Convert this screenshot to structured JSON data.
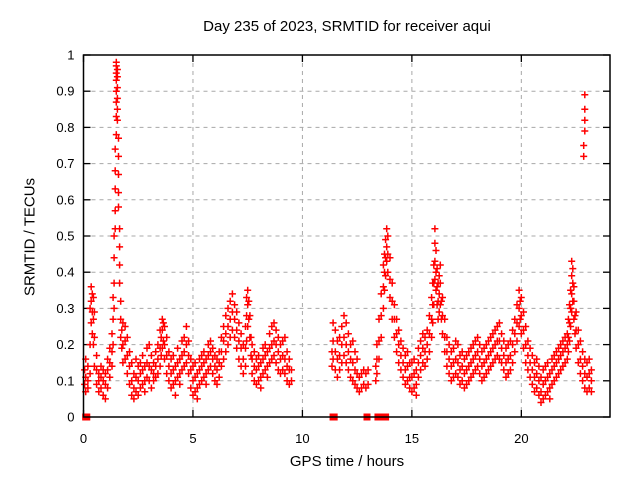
{
  "window": {
    "background": "#ffffff"
  },
  "chart_data": {
    "type": "scatter",
    "title": "Day 235 of 2023, SRMTID for receiver aqui",
    "xlabel": "GPS time / hours",
    "ylabel": "SRMTID / TECUs",
    "xlim": [
      0,
      24.05
    ],
    "ylim": [
      0,
      1
    ],
    "xticks": [
      0,
      5,
      10,
      15,
      20
    ],
    "xtick_labels": [
      "0",
      "5",
      "10",
      "15",
      "20"
    ],
    "yticks": [
      0,
      0.1,
      0.2,
      0.3,
      0.4,
      0.5,
      0.6,
      0.7,
      0.8,
      0.9,
      1
    ],
    "ytick_labels": [
      "0",
      "0.1",
      "0.2",
      "0.3",
      "0.4",
      "0.5",
      "0.6",
      "0.7",
      "0.8",
      "0.9",
      "1"
    ],
    "grid": true,
    "legend_position": "none",
    "marker": "plus",
    "marker_color": "#ff0000",
    "grid_color": "#a8a8a8",
    "border_color": "#000000",
    "columns_encoding": "each entry is [hour, value1, value2, ...]",
    "columns": [
      [
        0.05,
        0.09,
        0.13
      ],
      [
        0.1,
        0.07,
        0.11,
        0.16
      ],
      [
        0.2,
        0.1,
        0.14,
        0.08
      ],
      [
        0.3,
        0.12,
        0.2,
        0.3
      ],
      [
        0.35,
        0.26,
        0.32,
        0.36
      ],
      [
        0.4,
        0.29,
        0.34,
        0.23
      ],
      [
        0.45,
        0.2,
        0.27,
        0.33
      ],
      [
        0.5,
        0.14,
        0.22,
        0.29
      ],
      [
        0.6,
        0.09,
        0.13,
        0.17
      ],
      [
        0.7,
        0.07,
        0.12,
        0.1
      ],
      [
        0.8,
        0.08,
        0.14,
        0.11
      ],
      [
        0.9,
        0.06,
        0.1,
        0.13
      ],
      [
        1.0,
        0.05,
        0.09,
        0.12
      ],
      [
        1.1,
        0.08,
        0.13,
        0.16
      ],
      [
        1.2,
        0.11,
        0.15,
        0.19
      ],
      [
        1.3,
        0.14,
        0.18,
        0.23
      ],
      [
        1.35,
        0.2,
        0.27,
        0.33
      ],
      [
        1.4,
        0.3,
        0.37,
        0.44,
        0.5
      ],
      [
        1.45,
        0.52,
        0.57,
        0.63,
        0.68,
        0.74
      ],
      [
        1.5,
        0.78,
        0.83,
        0.87,
        0.9,
        0.93,
        0.95,
        0.97,
        0.98
      ],
      [
        1.55,
        0.96,
        0.94,
        0.91,
        0.88,
        0.85,
        0.82
      ],
      [
        1.6,
        0.77,
        0.72,
        0.67,
        0.62,
        0.58
      ],
      [
        1.65,
        0.52,
        0.47,
        0.42,
        0.37
      ],
      [
        1.7,
        0.32,
        0.27,
        0.22
      ],
      [
        1.75,
        0.19,
        0.24
      ],
      [
        1.8,
        0.15,
        0.2,
        0.26
      ],
      [
        1.9,
        0.16,
        0.21,
        0.25
      ],
      [
        2.0,
        0.12,
        0.17,
        0.22
      ],
      [
        2.1,
        0.09,
        0.14,
        0.18
      ],
      [
        2.2,
        0.06,
        0.1,
        0.15
      ],
      [
        2.3,
        0.08,
        0.12,
        0.05
      ],
      [
        2.4,
        0.07,
        0.11,
        0.16
      ],
      [
        2.5,
        0.06,
        0.1,
        0.14
      ],
      [
        2.6,
        0.08,
        0.12,
        0.15
      ],
      [
        2.7,
        0.09,
        0.13,
        0.17
      ],
      [
        2.8,
        0.1,
        0.14,
        0.07
      ],
      [
        2.9,
        0.11,
        0.15,
        0.19
      ],
      [
        3.0,
        0.1,
        0.14,
        0.2
      ],
      [
        3.1,
        0.08,
        0.13,
        0.17
      ],
      [
        3.2,
        0.1,
        0.15,
        0.12
      ],
      [
        3.3,
        0.11,
        0.14,
        0.18
      ],
      [
        3.4,
        0.12,
        0.16,
        0.2
      ],
      [
        3.5,
        0.14,
        0.19,
        0.24
      ],
      [
        3.55,
        0.17,
        0.22
      ],
      [
        3.6,
        0.19,
        0.24,
        0.27
      ],
      [
        3.65,
        0.21,
        0.26
      ],
      [
        3.7,
        0.16,
        0.2,
        0.25
      ],
      [
        3.8,
        0.12,
        0.17,
        0.22
      ],
      [
        3.9,
        0.1,
        0.14,
        0.18
      ],
      [
        4.0,
        0.08,
        0.12,
        0.16
      ],
      [
        4.1,
        0.09,
        0.13,
        0.17
      ],
      [
        4.2,
        0.1,
        0.14,
        0.06
      ],
      [
        4.3,
        0.11,
        0.15,
        0.19
      ],
      [
        4.4,
        0.12,
        0.16,
        0.09
      ],
      [
        4.5,
        0.13,
        0.17,
        0.21
      ],
      [
        4.6,
        0.14,
        0.18,
        0.22
      ],
      [
        4.7,
        0.15,
        0.2,
        0.25
      ],
      [
        4.8,
        0.12,
        0.17,
        0.21
      ],
      [
        4.9,
        0.08,
        0.13,
        0.16
      ],
      [
        5.0,
        0.06,
        0.1,
        0.14
      ],
      [
        5.1,
        0.07,
        0.11,
        0.15
      ],
      [
        5.2,
        0.08,
        0.12,
        0.05
      ],
      [
        5.3,
        0.09,
        0.13,
        0.16
      ],
      [
        5.4,
        0.1,
        0.14,
        0.17
      ],
      [
        5.5,
        0.11,
        0.15,
        0.18
      ],
      [
        5.6,
        0.12,
        0.16,
        0.09
      ],
      [
        5.7,
        0.13,
        0.17,
        0.2
      ],
      [
        5.8,
        0.14,
        0.18,
        0.21
      ],
      [
        5.9,
        0.12,
        0.16,
        0.19
      ],
      [
        6.0,
        0.1,
        0.14,
        0.17
      ],
      [
        6.1,
        0.09,
        0.13,
        0.16
      ],
      [
        6.2,
        0.11,
        0.15,
        0.18
      ],
      [
        6.3,
        0.14,
        0.18,
        0.22
      ],
      [
        6.4,
        0.16,
        0.21,
        0.25
      ],
      [
        6.5,
        0.18,
        0.23,
        0.28
      ],
      [
        6.6,
        0.2,
        0.25,
        0.3
      ],
      [
        6.7,
        0.22,
        0.27,
        0.32
      ],
      [
        6.8,
        0.24,
        0.29,
        0.34
      ],
      [
        6.9,
        0.22,
        0.27,
        0.31
      ],
      [
        7.0,
        0.19,
        0.24,
        0.29
      ],
      [
        7.1,
        0.16,
        0.21,
        0.26
      ],
      [
        7.2,
        0.14,
        0.19,
        0.23
      ],
      [
        7.3,
        0.12,
        0.16,
        0.2
      ],
      [
        7.4,
        0.14,
        0.19,
        0.25
      ],
      [
        7.45,
        0.21,
        0.28,
        0.33
      ],
      [
        7.5,
        0.25,
        0.31,
        0.35
      ],
      [
        7.55,
        0.27,
        0.32
      ],
      [
        7.6,
        0.22,
        0.28
      ],
      [
        7.65,
        0.17,
        0.22
      ],
      [
        7.7,
        0.12,
        0.16,
        0.2
      ],
      [
        7.8,
        0.1,
        0.14,
        0.18
      ],
      [
        7.9,
        0.09,
        0.13,
        0.16
      ],
      [
        8.0,
        0.1,
        0.14,
        0.17
      ],
      [
        8.1,
        0.11,
        0.15,
        0.08
      ],
      [
        8.2,
        0.12,
        0.16,
        0.19
      ],
      [
        8.3,
        0.13,
        0.17,
        0.2
      ],
      [
        8.4,
        0.14,
        0.18,
        0.11
      ],
      [
        8.5,
        0.15,
        0.19,
        0.23
      ],
      [
        8.6,
        0.16,
        0.2,
        0.25
      ],
      [
        8.7,
        0.17,
        0.21,
        0.26
      ],
      [
        8.8,
        0.15,
        0.2,
        0.24
      ],
      [
        8.9,
        0.13,
        0.18,
        0.22
      ],
      [
        9.0,
        0.12,
        0.16,
        0.2
      ],
      [
        9.1,
        0.13,
        0.17,
        0.21
      ],
      [
        9.2,
        0.12,
        0.16,
        0.22
      ],
      [
        9.3,
        0.1,
        0.14,
        0.18
      ],
      [
        9.4,
        0.09,
        0.13,
        0.16
      ],
      [
        9.5,
        0.1,
        0.13
      ],
      [
        11.35,
        0.14,
        0.18
      ],
      [
        11.4,
        0.16,
        0.21,
        0.26
      ],
      [
        11.5,
        0.13,
        0.18,
        0.24
      ],
      [
        11.6,
        0.11,
        0.16,
        0.21
      ],
      [
        11.7,
        0.13,
        0.17,
        0.22
      ],
      [
        11.8,
        0.15,
        0.2,
        0.25
      ],
      [
        11.9,
        0.17,
        0.22,
        0.28
      ],
      [
        12.0,
        0.15,
        0.2,
        0.26
      ],
      [
        12.1,
        0.13,
        0.18,
        0.23
      ],
      [
        12.2,
        0.11,
        0.16,
        0.2
      ],
      [
        12.3,
        0.1,
        0.15,
        0.21
      ],
      [
        12.4,
        0.09,
        0.13,
        0.18
      ],
      [
        12.5,
        0.08,
        0.12,
        0.16
      ],
      [
        12.6,
        0.07,
        0.11
      ],
      [
        12.7,
        0.08,
        0.12
      ],
      [
        12.8,
        0.09,
        0.13
      ],
      [
        12.9,
        0.08,
        0.12
      ],
      [
        13.0,
        0.09,
        0.13
      ],
      [
        13.35,
        0.1,
        0.14
      ],
      [
        13.4,
        0.12,
        0.16,
        0.2
      ],
      [
        13.5,
        0.16,
        0.21,
        0.27
      ],
      [
        13.6,
        0.22,
        0.28,
        0.34
      ],
      [
        13.7,
        0.3,
        0.36,
        0.42
      ],
      [
        13.75,
        0.35,
        0.4,
        0.45
      ],
      [
        13.8,
        0.39,
        0.44,
        0.49
      ],
      [
        13.85,
        0.43,
        0.47,
        0.52
      ],
      [
        13.9,
        0.4,
        0.45,
        0.5
      ],
      [
        14.0,
        0.33,
        0.38,
        0.44
      ],
      [
        14.1,
        0.27,
        0.32,
        0.37
      ],
      [
        14.2,
        0.22,
        0.27,
        0.31
      ],
      [
        14.3,
        0.18,
        0.23,
        0.27
      ],
      [
        14.4,
        0.15,
        0.2,
        0.24
      ],
      [
        14.5,
        0.13,
        0.17,
        0.21
      ],
      [
        14.6,
        0.11,
        0.15,
        0.19
      ],
      [
        14.7,
        0.09,
        0.13,
        0.17
      ],
      [
        14.8,
        0.1,
        0.14,
        0.18
      ],
      [
        14.9,
        0.11,
        0.15,
        0.08
      ],
      [
        15.0,
        0.07,
        0.11,
        0.15
      ],
      [
        15.1,
        0.08,
        0.12,
        0.16
      ],
      [
        15.2,
        0.09,
        0.13,
        0.06
      ],
      [
        15.3,
        0.11,
        0.15,
        0.19
      ],
      [
        15.4,
        0.13,
        0.17,
        0.21
      ],
      [
        15.5,
        0.15,
        0.19,
        0.23
      ],
      [
        15.6,
        0.14,
        0.18,
        0.22
      ],
      [
        15.7,
        0.16,
        0.2,
        0.24
      ],
      [
        15.8,
        0.18,
        0.23,
        0.28
      ],
      [
        15.9,
        0.22,
        0.27,
        0.33
      ],
      [
        15.95,
        0.26,
        0.31,
        0.37
      ],
      [
        16.0,
        0.31,
        0.37,
        0.42
      ],
      [
        16.05,
        0.38,
        0.43,
        0.48,
        0.52
      ],
      [
        16.1,
        0.35,
        0.4,
        0.46
      ],
      [
        16.15,
        0.31,
        0.36,
        0.41
      ],
      [
        16.2,
        0.27,
        0.32,
        0.37
      ],
      [
        16.25,
        0.29,
        0.34,
        0.39
      ],
      [
        16.3,
        0.31,
        0.37,
        0.42
      ],
      [
        16.35,
        0.27,
        0.32
      ],
      [
        16.4,
        0.23,
        0.28,
        0.33
      ],
      [
        16.5,
        0.18,
        0.22,
        0.27
      ],
      [
        16.6,
        0.14,
        0.18,
        0.22
      ],
      [
        16.7,
        0.12,
        0.16,
        0.2
      ],
      [
        16.8,
        0.1,
        0.14,
        0.18
      ],
      [
        16.9,
        0.11,
        0.15,
        0.19
      ],
      [
        17.0,
        0.12,
        0.16,
        0.21
      ],
      [
        17.1,
        0.11,
        0.15,
        0.2
      ],
      [
        17.2,
        0.09,
        0.13,
        0.17
      ],
      [
        17.3,
        0.1,
        0.14,
        0.18
      ],
      [
        17.4,
        0.08,
        0.12,
        0.16
      ],
      [
        17.5,
        0.09,
        0.13,
        0.17
      ],
      [
        17.6,
        0.1,
        0.14,
        0.18
      ],
      [
        17.7,
        0.11,
        0.15,
        0.19
      ],
      [
        17.8,
        0.12,
        0.16,
        0.2
      ],
      [
        17.9,
        0.13,
        0.17,
        0.21
      ],
      [
        18.0,
        0.14,
        0.18,
        0.22
      ],
      [
        18.1,
        0.12,
        0.16,
        0.2
      ],
      [
        18.2,
        0.1,
        0.14,
        0.18
      ],
      [
        18.3,
        0.11,
        0.15,
        0.19
      ],
      [
        18.4,
        0.12,
        0.16,
        0.2
      ],
      [
        18.5,
        0.13,
        0.17,
        0.21
      ],
      [
        18.6,
        0.14,
        0.18,
        0.22
      ],
      [
        18.7,
        0.15,
        0.19,
        0.23
      ],
      [
        18.8,
        0.16,
        0.2,
        0.24
      ],
      [
        18.9,
        0.17,
        0.21,
        0.25
      ],
      [
        19.0,
        0.16,
        0.21,
        0.26
      ],
      [
        19.1,
        0.15,
        0.19,
        0.23
      ],
      [
        19.2,
        0.13,
        0.17,
        0.21
      ],
      [
        19.3,
        0.11,
        0.15,
        0.19
      ],
      [
        19.4,
        0.12,
        0.16,
        0.2
      ],
      [
        19.5,
        0.13,
        0.17,
        0.21
      ],
      [
        19.6,
        0.15,
        0.2,
        0.24
      ],
      [
        19.7,
        0.18,
        0.23,
        0.27
      ],
      [
        19.8,
        0.21,
        0.26,
        0.31
      ],
      [
        19.9,
        0.25,
        0.3,
        0.35
      ],
      [
        19.95,
        0.27,
        0.32
      ],
      [
        20.0,
        0.23,
        0.28,
        0.33
      ],
      [
        20.1,
        0.19,
        0.24,
        0.29
      ],
      [
        20.2,
        0.15,
        0.2,
        0.25
      ],
      [
        20.3,
        0.13,
        0.17,
        0.21
      ],
      [
        20.4,
        0.11,
        0.15,
        0.19
      ],
      [
        20.5,
        0.09,
        0.13,
        0.17
      ],
      [
        20.6,
        0.07,
        0.11,
        0.15
      ],
      [
        20.7,
        0.08,
        0.12,
        0.16
      ],
      [
        20.8,
        0.06,
        0.1,
        0.14
      ],
      [
        20.9,
        0.07,
        0.11,
        0.04
      ],
      [
        21.0,
        0.05,
        0.09,
        0.13
      ],
      [
        21.1,
        0.06,
        0.1,
        0.14
      ],
      [
        21.2,
        0.07,
        0.11,
        0.15
      ],
      [
        21.3,
        0.08,
        0.12,
        0.05
      ],
      [
        21.4,
        0.09,
        0.13,
        0.16
      ],
      [
        21.5,
        0.1,
        0.14,
        0.17
      ],
      [
        21.6,
        0.11,
        0.15,
        0.18
      ],
      [
        21.7,
        0.12,
        0.16,
        0.19
      ],
      [
        21.8,
        0.13,
        0.17,
        0.2
      ],
      [
        21.9,
        0.14,
        0.18,
        0.21
      ],
      [
        22.0,
        0.15,
        0.19,
        0.22
      ],
      [
        22.1,
        0.16,
        0.2,
        0.23
      ],
      [
        22.15,
        0.18,
        0.22,
        0.27
      ],
      [
        22.2,
        0.21,
        0.26,
        0.31
      ],
      [
        22.25,
        0.25,
        0.3,
        0.35
      ],
      [
        22.3,
        0.29,
        0.34,
        0.39,
        0.43
      ],
      [
        22.35,
        0.32,
        0.37,
        0.41
      ],
      [
        22.4,
        0.27,
        0.32,
        0.36
      ],
      [
        22.45,
        0.23,
        0.28
      ],
      [
        22.5,
        0.19,
        0.24,
        0.29
      ],
      [
        22.6,
        0.15,
        0.2,
        0.24
      ],
      [
        22.7,
        0.12,
        0.16,
        0.21
      ],
      [
        22.8,
        0.1,
        0.14,
        0.18
      ],
      [
        22.9,
        0.08,
        0.12,
        0.16
      ],
      [
        23.0,
        0.07,
        0.11,
        0.15
      ],
      [
        23.1,
        0.08,
        0.12,
        0.16
      ],
      [
        23.2,
        0.07,
        0.1,
        0.13
      ],
      [
        22.85,
        0.72,
        0.75
      ],
      [
        22.9,
        0.79,
        0.82,
        0.85,
        0.89
      ]
    ],
    "zero_marker_xs": [
      0.1,
      0.15,
      11.4,
      11.45,
      12.95,
      13.45,
      13.5,
      13.55,
      13.6,
      13.65,
      13.7,
      13.75,
      13.8
    ],
    "zero_marker_y": 0,
    "zero_marker_shape": "filled-square"
  }
}
